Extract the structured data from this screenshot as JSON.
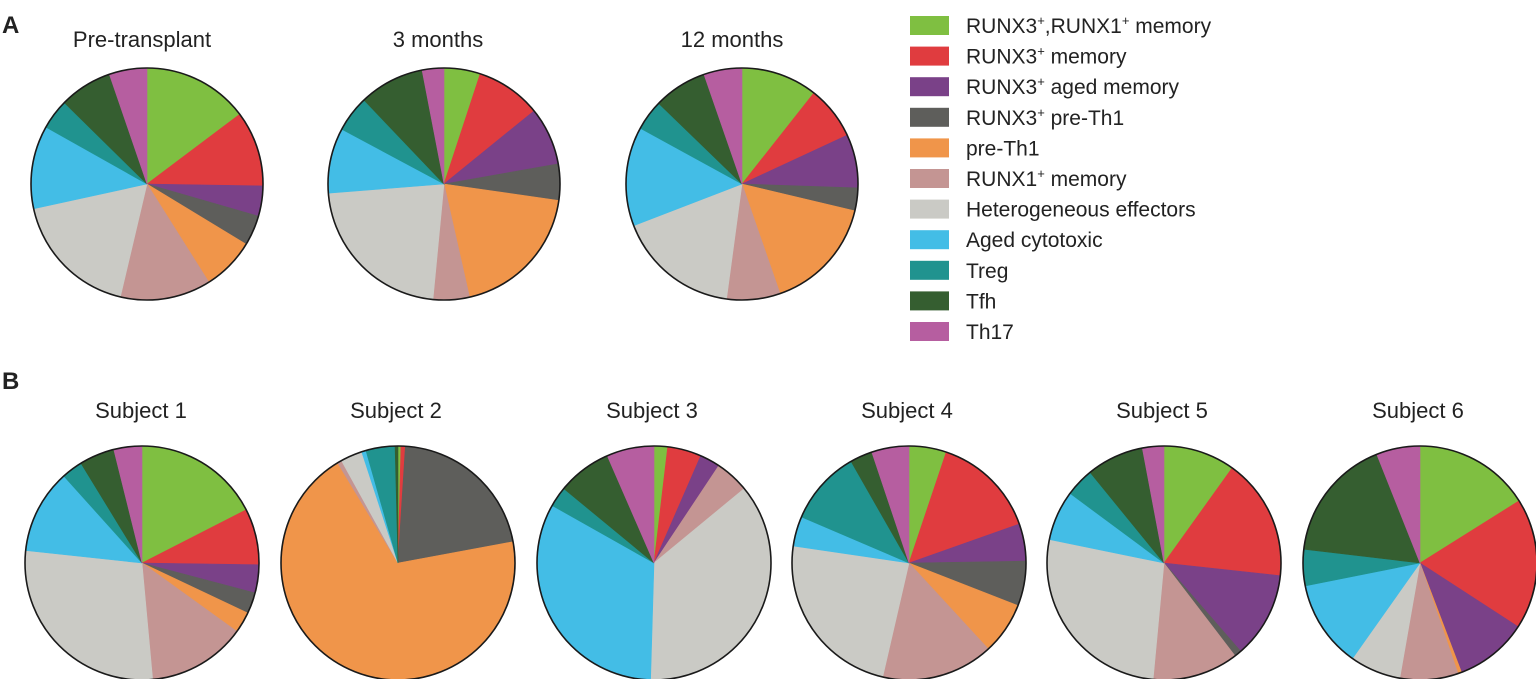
{
  "categories": [
    {
      "key": "c1",
      "label": "RUNX3⁺,RUNX1⁺ memory",
      "color": "#7fbf41"
    },
    {
      "key": "c2",
      "label": "RUNX3⁺ memory",
      "color": "#e03c3f"
    },
    {
      "key": "c3",
      "label": "RUNX3⁺ aged memory",
      "color": "#7a4188"
    },
    {
      "key": "c4",
      "label": "RUNX3⁺ pre-Th1",
      "color": "#5e5e5b"
    },
    {
      "key": "c5",
      "label": "pre-Th1",
      "color": "#f0954a"
    },
    {
      "key": "c6",
      "label": "RUNX1⁺ memory",
      "color": "#c49593"
    },
    {
      "key": "c7",
      "label": "Heterogeneous effectors",
      "color": "#cacac5"
    },
    {
      "key": "c8",
      "label": "Aged cytotoxic",
      "color": "#43bde6"
    },
    {
      "key": "c9",
      "label": "Treg",
      "color": "#20938f"
    },
    {
      "key": "c10",
      "label": "Tfh",
      "color": "#355e30"
    },
    {
      "key": "c11",
      "label": "Th17",
      "color": "#b65ea0"
    }
  ],
  "chart_data": [
    {
      "panel": "A",
      "type": "pie",
      "charts": [
        {
          "title": "Pre-transplant",
          "values": [
            14,
            10,
            4,
            4,
            7,
            12,
            17,
            11,
            4,
            7,
            5
          ]
        },
        {
          "title": "3 months",
          "values": [
            5,
            9,
            8,
            5,
            19,
            5,
            22,
            9,
            5,
            9,
            3
          ]
        },
        {
          "title": "12 months",
          "values": [
            10,
            7,
            7,
            3,
            15,
            7,
            16,
            13,
            4,
            7,
            5
          ]
        }
      ]
    },
    {
      "panel": "B",
      "type": "pie",
      "charts": [
        {
          "title": "Subject 1",
          "values": [
            18,
            8,
            4,
            3,
            3,
            14,
            29,
            12,
            3,
            5,
            4
          ]
        },
        {
          "title": "Subject 2",
          "values": [
            0.4,
            0.6,
            0,
            21,
            69,
            0.6,
            3,
            0.6,
            4,
            0.4,
            0
          ]
        },
        {
          "title": "Subject 3",
          "values": [
            2,
            5,
            3,
            0,
            0,
            5,
            39,
            35,
            3,
            8,
            7
          ]
        },
        {
          "title": "Subject 4",
          "values": [
            5,
            14,
            5,
            6,
            7,
            15,
            23,
            4,
            10,
            3,
            5
          ]
        },
        {
          "title": "Subject 5",
          "values": [
            10,
            17,
            12,
            1,
            0,
            12,
            27,
            7,
            4,
            8,
            3
          ]
        },
        {
          "title": "Subject 6",
          "values": [
            16,
            18,
            10,
            0,
            0.5,
            8,
            7,
            12,
            5,
            17,
            6
          ]
        }
      ]
    }
  ]
}
